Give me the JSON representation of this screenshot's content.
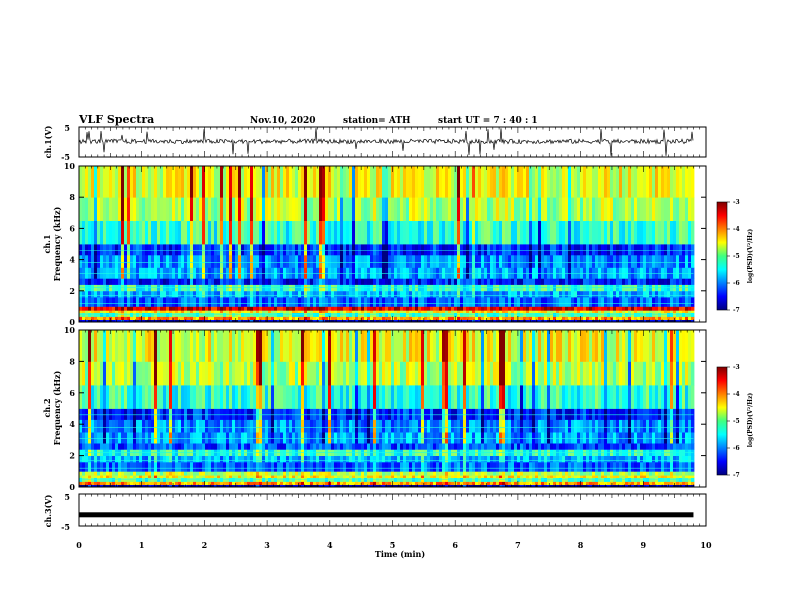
{
  "header": {
    "title": "VLF Spectra",
    "date": "Nov.10, 2020",
    "station": "station= ATH",
    "start": "start  UT  =   7 : 40 : 1"
  },
  "chart_data": [
    {
      "type": "line",
      "panel": "ch1-waveform",
      "ylabel": "ch.1(V)",
      "ylim": [
        -5,
        5
      ],
      "ytick_labels": [
        "5",
        "-5"
      ],
      "x_range_min": [
        0,
        9.8
      ],
      "baseline_v": 0.2,
      "noise_v": 1.5
    },
    {
      "type": "heatmap",
      "panel": "ch1-spectrogram",
      "ylabel_top": "ch.1",
      "ylabel": "Frequency  (kHz)",
      "ylim": [
        0,
        10
      ],
      "ytick_labels": [
        "0",
        "2",
        "4",
        "6",
        "8",
        "10"
      ],
      "x_range_min": [
        0,
        9.8
      ],
      "colorbar": {
        "label": "log(PSD)(V²/Hz)",
        "range": [
          -7,
          -3
        ],
        "tick_labels": [
          "-3",
          "-4",
          "-5",
          "-6",
          "-7"
        ]
      }
    },
    {
      "type": "heatmap",
      "panel": "ch2-spectrogram",
      "ylabel_top": "ch.2",
      "ylabel": "Frequency  (kHz)",
      "ylim": [
        0,
        10
      ],
      "ytick_labels": [
        "0",
        "2",
        "4",
        "6",
        "8",
        "10"
      ],
      "x_range_min": [
        0,
        9.8
      ],
      "colorbar": {
        "label": "log(PSD)(V²/Hz)",
        "range": [
          -7,
          -3
        ],
        "tick_labels": [
          "-3",
          "-4",
          "-5",
          "-6",
          "-7"
        ]
      }
    },
    {
      "type": "line",
      "panel": "ch3-waveform",
      "ylabel": "ch.3(V)",
      "ylim": [
        -5,
        5
      ],
      "ytick_labels": [
        "5",
        "-5"
      ],
      "x_range_min": [
        0,
        9.8
      ],
      "baseline_v": -1.5
    }
  ],
  "xaxis": {
    "label": "Time  (min)",
    "xlim": [
      0,
      10
    ],
    "tick_labels": [
      "0",
      "1",
      "2",
      "3",
      "4",
      "5",
      "6",
      "7",
      "8",
      "9",
      "10"
    ]
  }
}
